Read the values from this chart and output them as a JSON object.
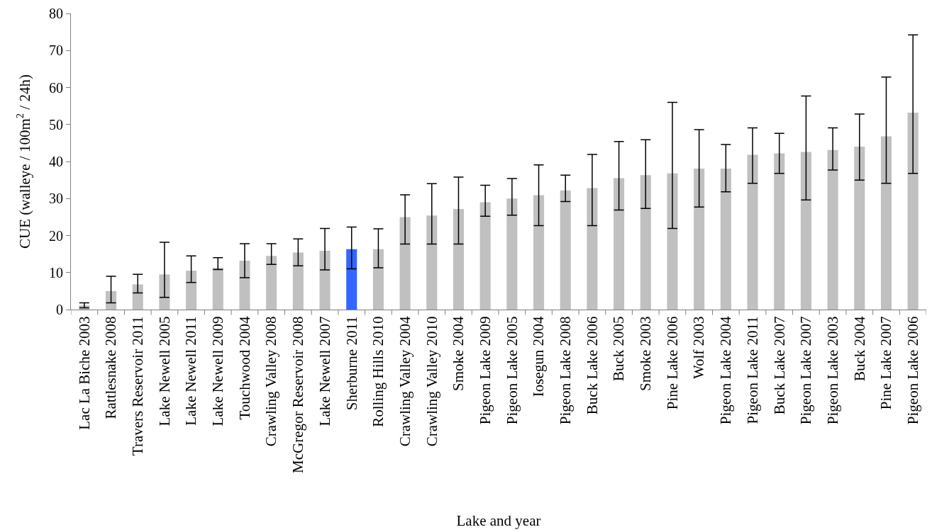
{
  "chart_data": {
    "type": "bar",
    "xlabel": "Lake and year",
    "ylabel": "CUE (walleye / 100m$^{2}$ / 24h)",
    "categories": [
      "Lac La Biche 2003",
      "Rattlesnake 2008",
      "Travers Reservoir 2011",
      "Lake Newell 2005",
      "Lake Newell 2011",
      "Lake Newell 2009",
      "Touchwood 2004",
      "Crawling Valley 2008",
      "McGregor Reservoir 2008",
      "Lake Newell 2007",
      "Sherburne 2011",
      "Rolling Hills 2010",
      "Crawling Valley 2004",
      "Crawling Valley 2010",
      "Smoke 2004",
      "Pigeon Lake 2009",
      "Pigeon Lake 2005",
      "Iosegun 2004",
      "Pigeon Lake 2008",
      "Buck Lake 2006",
      "Buck 2005",
      "Smoke 2003",
      "Pine Lake 2006",
      "Wolf 2003",
      "Pigeon Lake 2004",
      "Pigeon Lake 2011",
      "Buck Lake 2007",
      "Pigeon Lake 2007",
      "Pigeon Lake 2003",
      "Buck 2004",
      "Pine Lake 2007",
      "Pigeon Lake 2006"
    ],
    "values": [
      1.1,
      5,
      6.8,
      9.5,
      10.5,
      11.3,
      13.2,
      14.5,
      15.4,
      15.9,
      16.3,
      16.3,
      25,
      25.4,
      27.2,
      29,
      30,
      30.9,
      32.2,
      32.8,
      35.5,
      36.3,
      36.8,
      38.1,
      38.1,
      41.8,
      42.2,
      42.6,
      43.1,
      44,
      46.8,
      53.2
    ],
    "errors": [
      [
        0.5,
        1.8
      ],
      [
        1.8,
        9
      ],
      [
        4.5,
        9.5
      ],
      [
        3.3,
        18.2
      ],
      [
        7.3,
        14.5
      ],
      [
        10.8,
        14
      ],
      [
        8.6,
        17.8
      ],
      [
        12.2,
        17.8
      ],
      [
        11.8,
        19.1
      ],
      [
        10.7,
        21.9
      ],
      [
        11,
        22.3
      ],
      [
        11.3,
        21.8
      ],
      [
        17.7,
        31
      ],
      [
        17.7,
        34
      ],
      [
        17.7,
        35.8
      ],
      [
        25.2,
        33.6
      ],
      [
        25.5,
        35.4
      ],
      [
        22.7,
        39.1
      ],
      [
        29.2,
        36.3
      ],
      [
        22.7,
        41.9
      ],
      [
        26.9,
        45.4
      ],
      [
        27.3,
        45.9
      ],
      [
        21.9,
        56
      ],
      [
        27.7,
        48.6
      ],
      [
        31.8,
        44.6
      ],
      [
        34.1,
        49.1
      ],
      [
        36.8,
        47.6
      ],
      [
        29.6,
        57.7
      ],
      [
        37.7,
        49.1
      ],
      [
        35,
        52.8
      ],
      [
        34.1,
        62.8
      ],
      [
        36.8,
        74.2
      ]
    ],
    "colors": [
      "#c0c0c0",
      "#c0c0c0",
      "#c0c0c0",
      "#c0c0c0",
      "#c0c0c0",
      "#c0c0c0",
      "#c0c0c0",
      "#c0c0c0",
      "#c0c0c0",
      "#c0c0c0",
      "#3366ff",
      "#c0c0c0",
      "#c0c0c0",
      "#c0c0c0",
      "#c0c0c0",
      "#c0c0c0",
      "#c0c0c0",
      "#c0c0c0",
      "#c0c0c0",
      "#c0c0c0",
      "#c0c0c0",
      "#c0c0c0",
      "#c0c0c0",
      "#c0c0c0",
      "#c0c0c0",
      "#c0c0c0",
      "#c0c0c0",
      "#c0c0c0",
      "#c0c0c0",
      "#c0c0c0",
      "#c0c0c0",
      "#c0c0c0"
    ],
    "ylim": [
      0,
      80
    ],
    "yticks": [
      0,
      10,
      20,
      30,
      40,
      50,
      60,
      70,
      80
    ],
    "grid": false,
    "legend": false
  }
}
